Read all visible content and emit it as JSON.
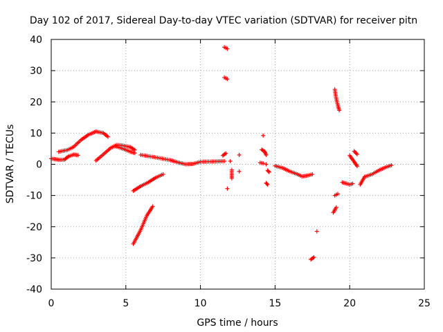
{
  "chart_data": {
    "type": "scatter",
    "title": "Day 102 of 2017, Sidereal Day-to-day VTEC variation (SDTVAR) for receiver pitn",
    "xlabel": "GPS time / hours",
    "ylabel": "SDTVAR / TECUs",
    "xlim": [
      0,
      25
    ],
    "ylim": [
      -40,
      40
    ],
    "xticks": [
      0,
      5,
      10,
      15,
      20,
      25
    ],
    "yticks": [
      -40,
      -30,
      -20,
      -10,
      0,
      10,
      20,
      30,
      40
    ],
    "grid": true,
    "marker": "plus",
    "color": "#ff0000",
    "series": [
      {
        "name": "SDTVAR",
        "segments": [
          [
            [
              0.0,
              1.8
            ],
            [
              0.3,
              1.6
            ],
            [
              0.6,
              1.4
            ],
            [
              0.9,
              1.5
            ],
            [
              1.0,
              2.0
            ],
            [
              1.2,
              2.6
            ],
            [
              1.5,
              3.1
            ],
            [
              1.8,
              2.9
            ]
          ],
          [
            [
              0.5,
              4.0
            ],
            [
              0.8,
              4.3
            ],
            [
              1.1,
              4.6
            ],
            [
              1.5,
              5.6
            ],
            [
              2.0,
              7.8
            ],
            [
              2.5,
              9.5
            ],
            [
              3.0,
              10.5
            ],
            [
              3.5,
              10.0
            ],
            [
              3.8,
              8.8
            ]
          ],
          [
            [
              3.0,
              1.2
            ],
            [
              3.5,
              3.2
            ],
            [
              4.0,
              5.3
            ],
            [
              4.4,
              6.2
            ],
            [
              4.8,
              6.0
            ],
            [
              5.3,
              5.5
            ],
            [
              5.6,
              4.6
            ]
          ],
          [
            [
              4.3,
              5.8
            ],
            [
              4.8,
              5.0
            ],
            [
              5.3,
              4.0
            ],
            [
              5.6,
              3.6
            ]
          ],
          [
            [
              6.0,
              3.0
            ],
            [
              7.0,
              2.2
            ],
            [
              8.0,
              1.3
            ],
            [
              8.5,
              0.6
            ],
            [
              9.0,
              0.0
            ],
            [
              9.5,
              0.1
            ],
            [
              10.0,
              0.8
            ],
            [
              11.0,
              0.9
            ],
            [
              11.6,
              1.0
            ]
          ],
          [
            [
              5.5,
              -25.5
            ],
            [
              6.0,
              -21.0
            ],
            [
              6.4,
              -16.5
            ],
            [
              6.8,
              -13.5
            ]
          ],
          [
            [
              5.5,
              -8.5
            ],
            [
              6.0,
              -7.0
            ],
            [
              6.5,
              -5.8
            ],
            [
              7.0,
              -4.3
            ],
            [
              7.5,
              -3.2
            ]
          ],
          [
            [
              11.6,
              37.5
            ],
            [
              11.8,
              37.0
            ]
          ],
          [
            [
              11.6,
              27.8
            ],
            [
              11.8,
              27.3
            ]
          ],
          [
            [
              11.5,
              2.8
            ],
            [
              11.7,
              3.5
            ]
          ],
          [
            [
              11.8,
              -7.8
            ]
          ],
          [
            [
              12.0,
              1.0
            ]
          ],
          [
            [
              12.1,
              -1.8
            ],
            [
              12.1,
              -3.3
            ],
            [
              12.1,
              -4.5
            ]
          ],
          [
            [
              12.6,
              3.0
            ]
          ],
          [
            [
              12.6,
              -2.3
            ]
          ],
          [
            [
              14.0,
              0.5
            ],
            [
              14.2,
              0.3
            ]
          ],
          [
            [
              14.1,
              4.7
            ],
            [
              14.3,
              4.1
            ],
            [
              14.4,
              3.0
            ]
          ],
          [
            [
              14.2,
              9.2
            ]
          ],
          [
            [
              14.4,
              0.0
            ]
          ],
          [
            [
              14.5,
              -2.0
            ],
            [
              14.6,
              -2.5
            ]
          ],
          [
            [
              14.4,
              -6.0
            ],
            [
              14.5,
              -6.5
            ]
          ],
          [
            [
              15.0,
              -0.5
            ],
            [
              15.5,
              -1.2
            ],
            [
              16.0,
              -2.3
            ],
            [
              16.5,
              -3.2
            ],
            [
              16.8,
              -3.9
            ],
            [
              17.2,
              -3.6
            ],
            [
              17.5,
              -3.2
            ]
          ],
          [
            [
              17.4,
              -30.5
            ],
            [
              17.6,
              -29.8
            ]
          ],
          [
            [
              17.8,
              -21.5
            ]
          ],
          [
            [
              18.9,
              -15.5
            ],
            [
              19.1,
              -13.8
            ]
          ],
          [
            [
              19.0,
              -10.0
            ],
            [
              19.2,
              -9.5
            ]
          ],
          [
            [
              19.0,
              24.0
            ],
            [
              19.1,
              21.0
            ],
            [
              19.2,
              19.0
            ],
            [
              19.3,
              17.3
            ]
          ],
          [
            [
              19.5,
              -5.8
            ],
            [
              19.8,
              -6.2
            ],
            [
              20.0,
              -6.5
            ],
            [
              20.2,
              -6.2
            ]
          ],
          [
            [
              20.0,
              2.8
            ],
            [
              20.3,
              0.8
            ],
            [
              20.5,
              -0.6
            ]
          ],
          [
            [
              20.3,
              4.2
            ],
            [
              20.5,
              3.2
            ]
          ],
          [
            [
              20.7,
              -6.5
            ],
            [
              21.0,
              -4.0
            ],
            [
              21.5,
              -3.2
            ],
            [
              22.0,
              -1.8
            ],
            [
              22.5,
              -0.8
            ],
            [
              22.8,
              -0.3
            ]
          ]
        ]
      }
    ]
  }
}
